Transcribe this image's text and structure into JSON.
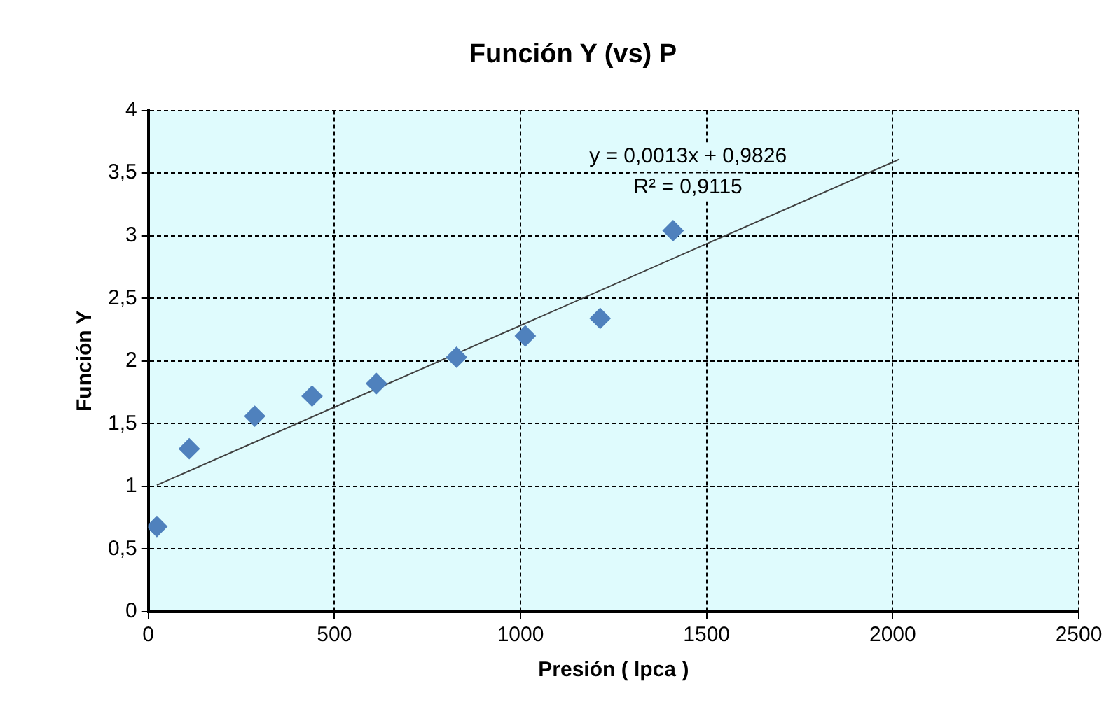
{
  "chart_data": {
    "type": "scatter",
    "title": "Función Y (vs) P",
    "xlabel": "Presión ( lpca )",
    "ylabel": "Función Y",
    "series": [
      {
        "color": "#4f81bd",
        "marker": "diamond",
        "x": [
          23,
          110,
          286,
          440,
          613,
          828,
          1013,
          1214,
          1410
        ],
        "values": [
          0.68,
          1.3,
          1.56,
          1.72,
          1.82,
          2.03,
          2.2,
          2.34,
          3.04
        ]
      },
      {
        "type": "line",
        "color": "#404040",
        "marker": "none",
        "x": [
          23,
          2018
        ],
        "values": [
          1.01,
          3.61
        ]
      }
    ],
    "annotations": [
      "y = 0,0013x + 0,9826",
      "R² = 0,9115"
    ],
    "xlim": [
      0,
      2500
    ],
    "xticks": [
      0,
      500,
      1000,
      1500,
      2000,
      2500
    ],
    "ylim": [
      0,
      4
    ],
    "yticks": [
      0,
      {
        "value": 0.5,
        "label": "0,5"
      },
      1,
      {
        "value": 1.5,
        "label": "1,5"
      },
      2,
      {
        "value": 2.5,
        "label": "2,5"
      },
      3,
      {
        "value": 3.5,
        "label": "3,5"
      },
      4
    ],
    "grid": true,
    "legend": false
  }
}
